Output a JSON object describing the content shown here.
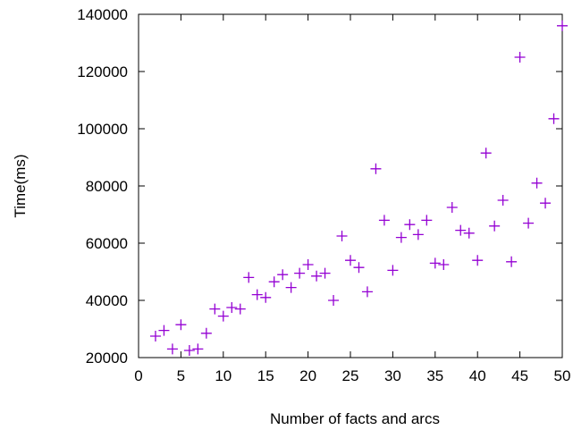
{
  "chart_data": {
    "type": "scatter",
    "title": "",
    "xlabel": "Number of facts and arcs",
    "ylabel": "Time(ms)",
    "xlim": [
      0,
      50
    ],
    "ylim": [
      20000,
      140000
    ],
    "xticks": [
      0,
      5,
      10,
      15,
      20,
      25,
      30,
      35,
      40,
      45,
      50
    ],
    "yticks": [
      20000,
      40000,
      60000,
      80000,
      100000,
      120000,
      140000
    ],
    "xtick_labels": [
      "0",
      "5",
      "10",
      "15",
      "20",
      "25",
      "30",
      "35",
      "40",
      "45",
      "50"
    ],
    "ytick_labels": [
      "20000",
      "40000",
      "60000",
      "80000",
      "100000",
      "120000",
      "140000"
    ],
    "grid": false,
    "marker": "plus",
    "color": "#9400d3",
    "series": [
      {
        "points": [
          [
            2,
            27500
          ],
          [
            3,
            29500
          ],
          [
            4,
            23000
          ],
          [
            5,
            31500
          ],
          [
            6,
            22500
          ],
          [
            7,
            23000
          ],
          [
            8,
            28500
          ],
          [
            9,
            37000
          ],
          [
            10,
            34500
          ],
          [
            11,
            37500
          ],
          [
            12,
            37000
          ],
          [
            13,
            48000
          ],
          [
            14,
            42000
          ],
          [
            15,
            41000
          ],
          [
            16,
            46500
          ],
          [
            17,
            49000
          ],
          [
            18,
            44500
          ],
          [
            19,
            49500
          ],
          [
            20,
            52500
          ],
          [
            21,
            48500
          ],
          [
            22,
            49500
          ],
          [
            23,
            40000
          ],
          [
            24,
            62500
          ],
          [
            25,
            54000
          ],
          [
            26,
            51500
          ],
          [
            27,
            43000
          ],
          [
            28,
            86000
          ],
          [
            29,
            68000
          ],
          [
            30,
            50500
          ],
          [
            31,
            62000
          ],
          [
            32,
            66500
          ],
          [
            33,
            63000
          ],
          [
            34,
            68000
          ],
          [
            35,
            53000
          ],
          [
            36,
            52500
          ],
          [
            37,
            72500
          ],
          [
            38,
            64500
          ],
          [
            39,
            63500
          ],
          [
            40,
            54000
          ],
          [
            41,
            91500
          ],
          [
            42,
            66000
          ],
          [
            43,
            75000
          ],
          [
            44,
            53500
          ],
          [
            45,
            125000
          ],
          [
            46,
            67000
          ],
          [
            47,
            81000
          ],
          [
            48,
            74000
          ],
          [
            49,
            103500
          ],
          [
            50,
            136000
          ]
        ]
      }
    ]
  }
}
